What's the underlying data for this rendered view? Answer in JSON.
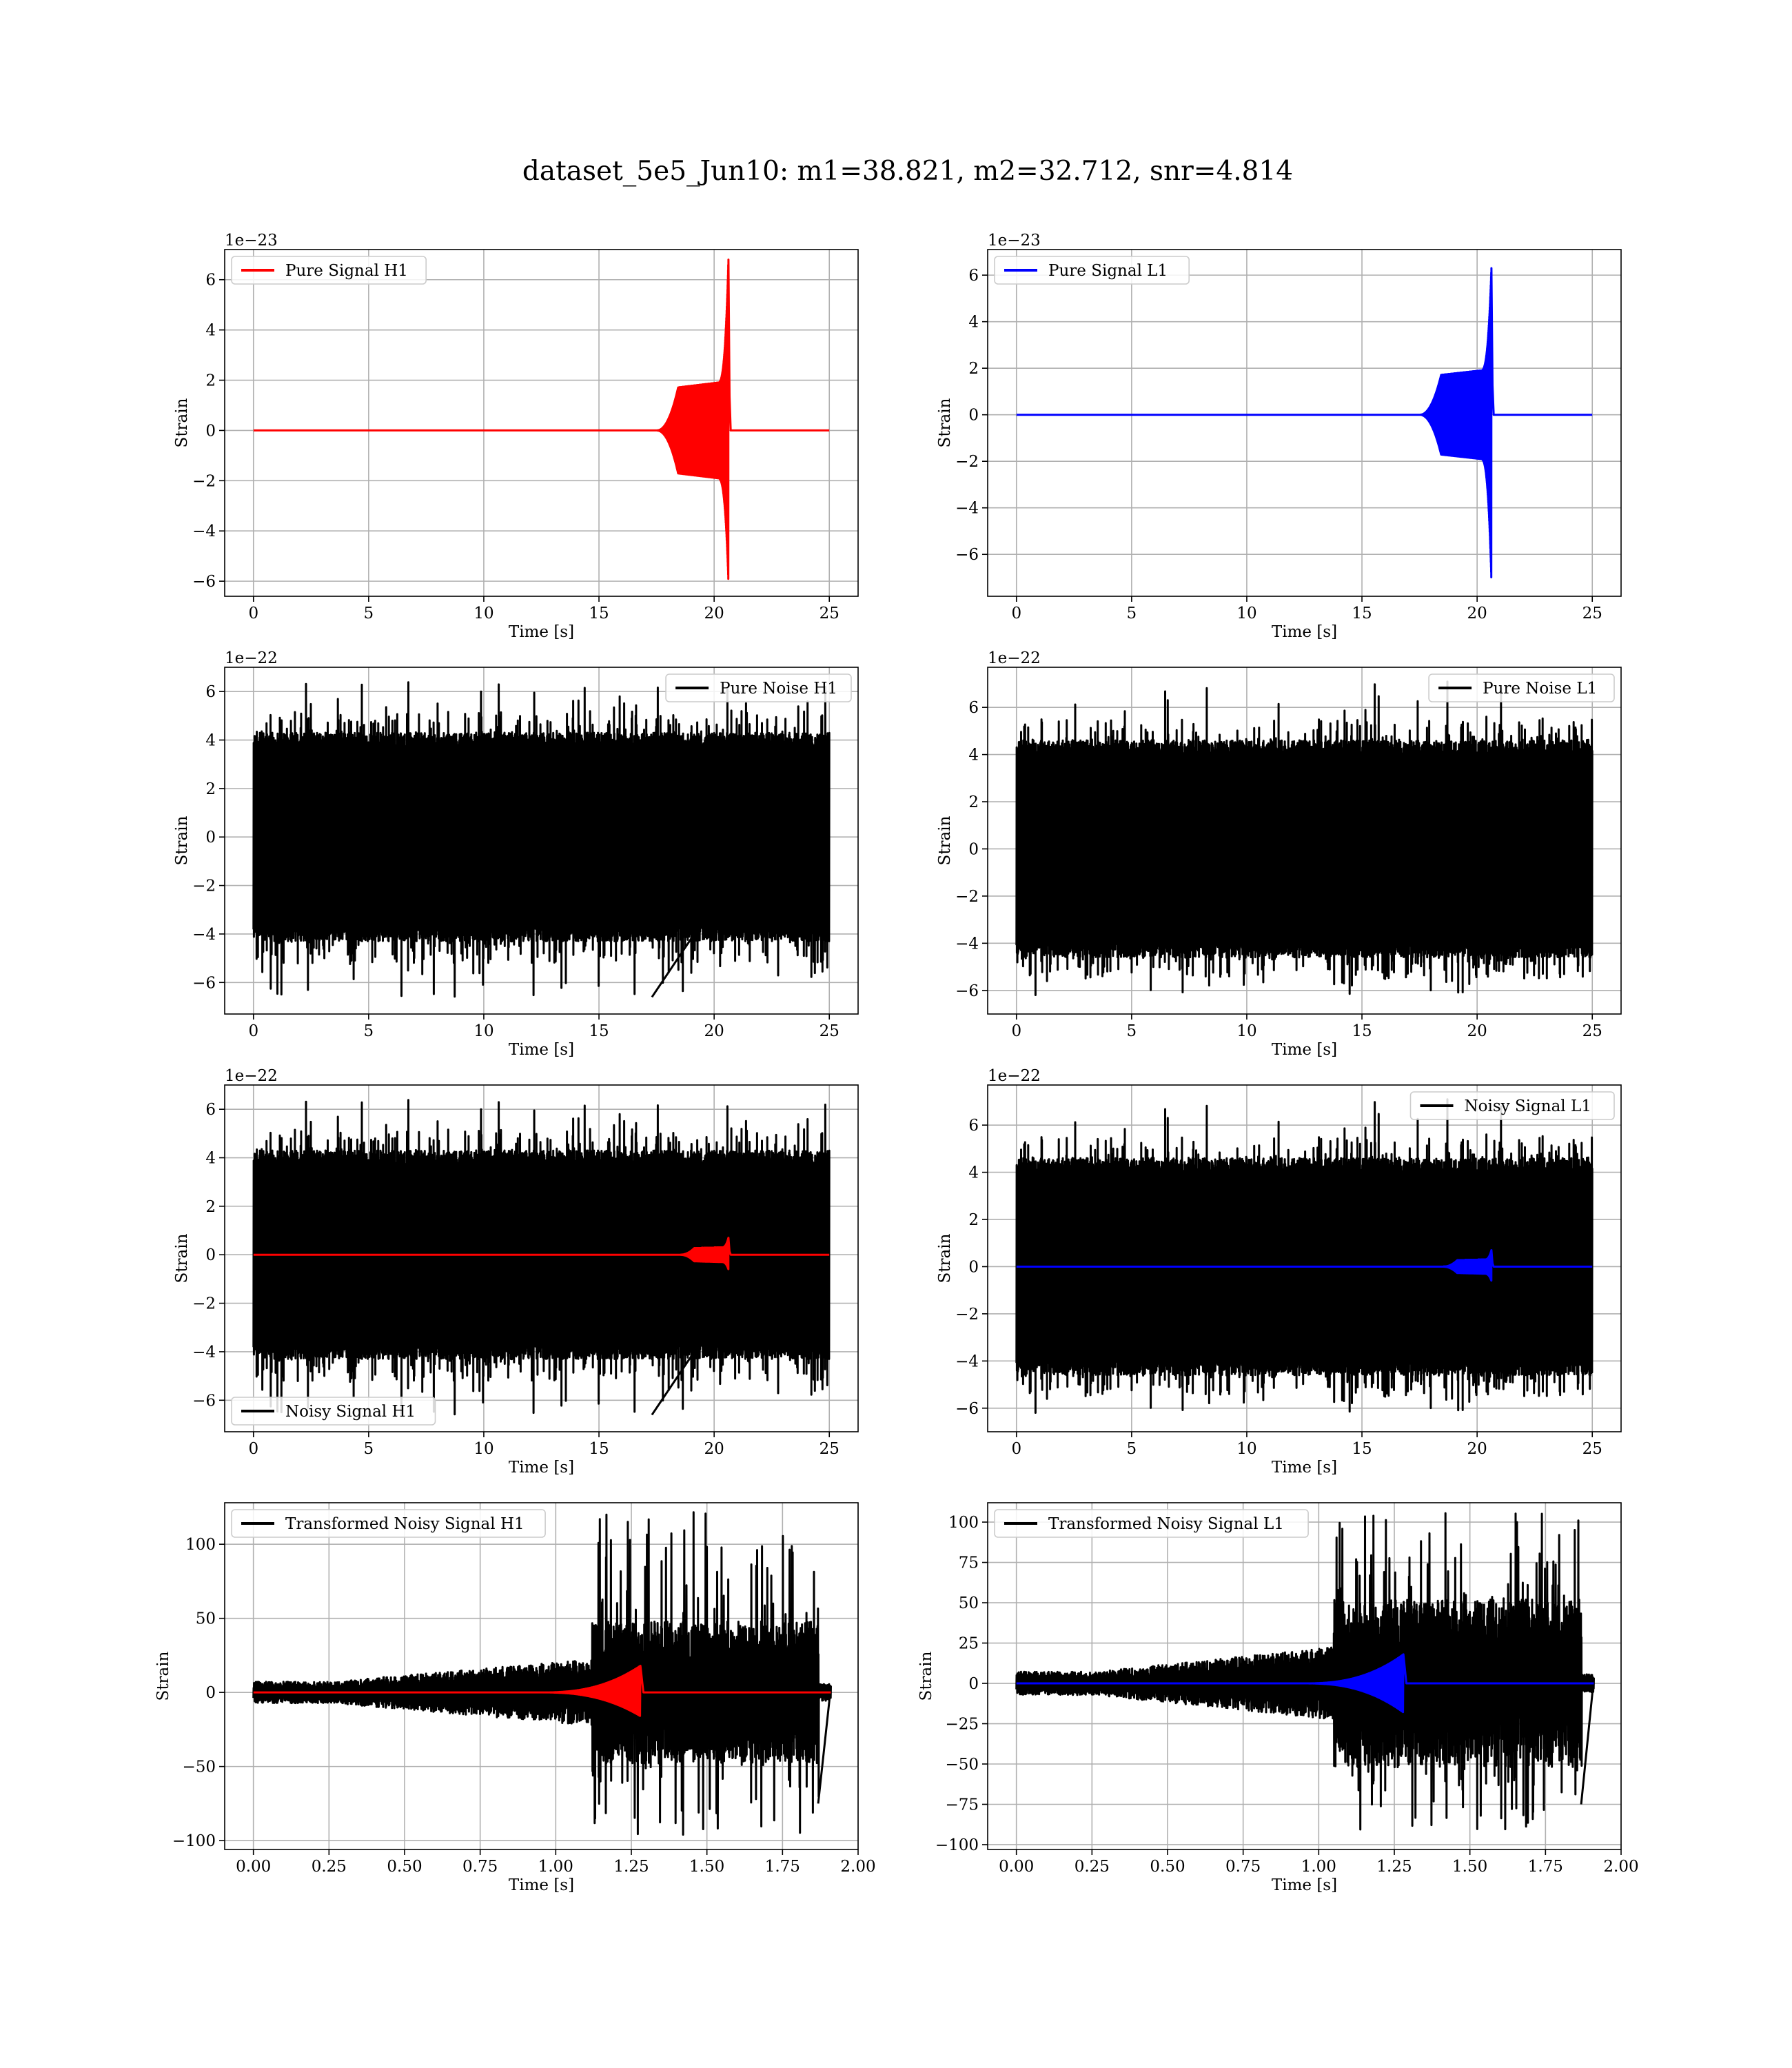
{
  "figure": {
    "title": "dataset_5e5_Jun10: m1=38.821, m2=32.712, snr=4.814"
  },
  "chart_data": [
    {
      "type": "line",
      "id": "pure-signal-h1",
      "legend": [
        "Pure Signal H1"
      ],
      "legend_loc": "upper-left",
      "xlabel": "Time [s]",
      "ylabel": "Strain",
      "offset_text": "1e−23",
      "xlim": [
        -1.25,
        26.25
      ],
      "ylim": [
        -6.6,
        7.2
      ],
      "xticks": [
        0,
        5,
        10,
        15,
        20,
        25
      ],
      "xtick_labels": [
        "0",
        "5",
        "10",
        "15",
        "20",
        "25"
      ],
      "yticks": [
        -6,
        -4,
        -2,
        0,
        2,
        4,
        6
      ],
      "ytick_labels": [
        "−6",
        "−4",
        "−2",
        "0",
        "2",
        "4",
        "6"
      ],
      "grid": true,
      "series": [
        {
          "name": "Pure Signal H1",
          "color": "#ff0000",
          "kind": "chirp",
          "x_start": 0,
          "x_end": 25,
          "t_onset": 17.5,
          "t_merger": 20.62,
          "plateau": 1.9,
          "peak_top": 6.8,
          "peak_bottom": -6.0
        }
      ]
    },
    {
      "type": "line",
      "id": "pure-signal-l1",
      "legend": [
        "Pure Signal L1"
      ],
      "legend_loc": "upper-left",
      "xlabel": "Time [s]",
      "ylabel": "Strain",
      "offset_text": "1e−23",
      "xlim": [
        -1.25,
        26.25
      ],
      "ylim": [
        -7.8,
        7.1
      ],
      "xticks": [
        0,
        5,
        10,
        15,
        20,
        25
      ],
      "xtick_labels": [
        "0",
        "5",
        "10",
        "15",
        "20",
        "25"
      ],
      "yticks": [
        -6,
        -4,
        -2,
        0,
        2,
        4,
        6
      ],
      "ytick_labels": [
        "−6",
        "−4",
        "−2",
        "0",
        "2",
        "4",
        "6"
      ],
      "grid": true,
      "series": [
        {
          "name": "Pure Signal L1",
          "color": "#0000ff",
          "kind": "chirp",
          "x_start": 0,
          "x_end": 25,
          "t_onset": 17.5,
          "t_merger": 20.62,
          "plateau": 1.9,
          "peak_top": 6.3,
          "peak_bottom": -7.1
        }
      ]
    },
    {
      "type": "line",
      "id": "pure-noise-h1",
      "legend": [
        "Pure Noise H1"
      ],
      "legend_loc": "upper-right",
      "xlabel": "Time [s]",
      "ylabel": "Strain",
      "offset_text": "1e−22",
      "xlim": [
        -1.25,
        26.25
      ],
      "ylim": [
        -7.3,
        7.0
      ],
      "xticks": [
        0,
        5,
        10,
        15,
        20,
        25
      ],
      "xtick_labels": [
        "0",
        "5",
        "10",
        "15",
        "20",
        "25"
      ],
      "yticks": [
        -6,
        -4,
        -2,
        0,
        2,
        4,
        6
      ],
      "ytick_labels": [
        "−6",
        "−4",
        "−2",
        "0",
        "2",
        "4",
        "6"
      ],
      "grid": true,
      "series": [
        {
          "name": "Pure Noise H1",
          "color": "#000000",
          "kind": "noise",
          "x_start": 0,
          "x_end": 25,
          "band": 4.3,
          "max": 6.4,
          "min": -6.6,
          "seed": 11
        }
      ]
    },
    {
      "type": "line",
      "id": "pure-noise-l1",
      "legend": [
        "Pure Noise L1"
      ],
      "legend_loc": "upper-right",
      "xlabel": "Time [s]",
      "ylabel": "Strain",
      "offset_text": "1e−22",
      "xlim": [
        -1.25,
        26.25
      ],
      "ylim": [
        -7.0,
        7.7
      ],
      "xticks": [
        0,
        5,
        10,
        15,
        20,
        25
      ],
      "xtick_labels": [
        "0",
        "5",
        "10",
        "15",
        "20",
        "25"
      ],
      "yticks": [
        -6,
        -4,
        -2,
        0,
        2,
        4,
        6
      ],
      "ytick_labels": [
        "−6",
        "−4",
        "−2",
        "0",
        "2",
        "4",
        "6"
      ],
      "grid": true,
      "series": [
        {
          "name": "Pure Noise L1",
          "color": "#000000",
          "kind": "noise",
          "x_start": 0,
          "x_end": 25,
          "band": 4.6,
          "max": 7.1,
          "min": -6.3,
          "seed": 23
        }
      ]
    },
    {
      "type": "line",
      "id": "noisy-signal-h1",
      "legend": [
        "Noisy Signal H1"
      ],
      "legend_loc": "lower-left",
      "xlabel": "Time [s]",
      "ylabel": "Strain",
      "offset_text": "1e−22",
      "xlim": [
        -1.25,
        26.25
      ],
      "ylim": [
        -7.3,
        7.0
      ],
      "xticks": [
        0,
        5,
        10,
        15,
        20,
        25
      ],
      "xtick_labels": [
        "0",
        "5",
        "10",
        "15",
        "20",
        "25"
      ],
      "yticks": [
        -6,
        -4,
        -2,
        0,
        2,
        4,
        6
      ],
      "ytick_labels": [
        "−6",
        "−4",
        "−2",
        "0",
        "2",
        "4",
        "6"
      ],
      "grid": true,
      "series": [
        {
          "name": "Noisy Signal H1",
          "color": "#000000",
          "kind": "noise",
          "x_start": 0,
          "x_end": 25,
          "band": 4.3,
          "max": 6.4,
          "min": -6.6,
          "seed": 11
        },
        {
          "color": "#ff0000",
          "kind": "chirp",
          "x_start": 0,
          "x_end": 25,
          "t_onset": 18.5,
          "t_merger": 20.62,
          "plateau": 0.3,
          "peak_top": 0.7,
          "peak_bottom": -0.6
        }
      ]
    },
    {
      "type": "line",
      "id": "noisy-signal-l1",
      "legend": [
        "Noisy Signal L1"
      ],
      "legend_loc": "upper-right",
      "xlabel": "Time [s]",
      "ylabel": "Strain",
      "offset_text": "1e−22",
      "xlim": [
        -1.25,
        26.25
      ],
      "ylim": [
        -7.0,
        7.7
      ],
      "xticks": [
        0,
        5,
        10,
        15,
        20,
        25
      ],
      "xtick_labels": [
        "0",
        "5",
        "10",
        "15",
        "20",
        "25"
      ],
      "yticks": [
        -6,
        -4,
        -2,
        0,
        2,
        4,
        6
      ],
      "ytick_labels": [
        "−6",
        "−4",
        "−2",
        "0",
        "2",
        "4",
        "6"
      ],
      "grid": true,
      "series": [
        {
          "name": "Noisy Signal L1",
          "color": "#000000",
          "kind": "noise",
          "x_start": 0,
          "x_end": 25,
          "band": 4.6,
          "max": 7.1,
          "min": -6.3,
          "seed": 23
        },
        {
          "color": "#0000ff",
          "kind": "chirp",
          "x_start": 0,
          "x_end": 25,
          "t_onset": 18.5,
          "t_merger": 20.62,
          "plateau": 0.3,
          "peak_top": 0.7,
          "peak_bottom": -0.6
        }
      ]
    },
    {
      "type": "line",
      "id": "transformed-noisy-signal-h1",
      "legend": [
        "Transformed Noisy Signal H1"
      ],
      "legend_loc": "upper-left",
      "xlabel": "Time [s]",
      "ylabel": "Strain",
      "offset_text": "",
      "xlim": [
        -0.095,
        2.0
      ],
      "ylim": [
        -106,
        128
      ],
      "xticks": [
        0,
        0.25,
        0.5,
        0.75,
        1.0,
        1.25,
        1.5,
        1.75,
        2.0
      ],
      "xtick_labels": [
        "0.00",
        "0.25",
        "0.50",
        "0.75",
        "1.00",
        "1.25",
        "1.50",
        "1.75",
        "2.00"
      ],
      "yticks": [
        -100,
        -50,
        0,
        50,
        100
      ],
      "ytick_labels": [
        "−100",
        "−50",
        "0",
        "50",
        "100"
      ],
      "grid": true,
      "series": [
        {
          "name": "Transformed Noisy Signal H1",
          "color": "#000000",
          "kind": "whitened",
          "x_start": 0,
          "x_end": 1.91,
          "t_burst": 1.12,
          "end_cut": 1.87,
          "low": 8,
          "high": 48,
          "max": 122,
          "min": -97,
          "seed": 31
        },
        {
          "color": "#ff0000",
          "kind": "whitened-chirp",
          "x_start": 0,
          "x_end": 1.91,
          "t_onset": 0.95,
          "t_merger": 1.28,
          "peak_top": 18,
          "peak_bottom": -16
        }
      ]
    },
    {
      "type": "line",
      "id": "transformed-noisy-signal-l1",
      "legend": [
        "Transformed Noisy Signal L1"
      ],
      "legend_loc": "upper-left",
      "xlabel": "Time [s]",
      "ylabel": "Strain",
      "offset_text": "",
      "xlim": [
        -0.095,
        2.0
      ],
      "ylim": [
        -103,
        112
      ],
      "xticks": [
        0,
        0.25,
        0.5,
        0.75,
        1.0,
        1.25,
        1.5,
        1.75,
        2.0
      ],
      "xtick_labels": [
        "0.00",
        "0.25",
        "0.50",
        "0.75",
        "1.00",
        "1.25",
        "1.50",
        "1.75",
        "2.00"
      ],
      "yticks": [
        -100,
        -75,
        -50,
        -25,
        0,
        25,
        50,
        75,
        100
      ],
      "ytick_labels": [
        "−100",
        "−75",
        "−50",
        "−25",
        "0",
        "25",
        "50",
        "75",
        "100"
      ],
      "grid": true,
      "series": [
        {
          "name": "Transformed Noisy Signal L1",
          "color": "#000000",
          "kind": "whitened",
          "x_start": 0,
          "x_end": 1.91,
          "t_burst": 1.05,
          "end_cut": 1.87,
          "low": 8,
          "high": 52,
          "max": 106,
          "min": -93,
          "seed": 47
        },
        {
          "color": "#0000ff",
          "kind": "whitened-chirp",
          "x_start": 0,
          "x_end": 1.91,
          "t_onset": 0.95,
          "t_merger": 1.28,
          "peak_top": 18,
          "peak_bottom": -18
        }
      ]
    }
  ]
}
